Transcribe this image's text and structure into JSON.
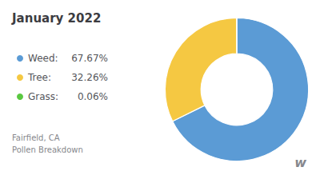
{
  "chart_data": {
    "type": "pie",
    "title": "January 2022",
    "subtitle": "Fairfield, CA\nPollen Breakdown",
    "categories": [
      "Weed:",
      "Tree:",
      "Grass:"
    ],
    "values": [
      67.67,
      32.26,
      0.06
    ],
    "value_labels": [
      "67.67%",
      "32.26%",
      "0.06%"
    ],
    "colors": [
      "#5b9bd5",
      "#f5c842",
      "#5ac840"
    ],
    "legend": "left",
    "annotations": [
      "w"
    ]
  }
}
